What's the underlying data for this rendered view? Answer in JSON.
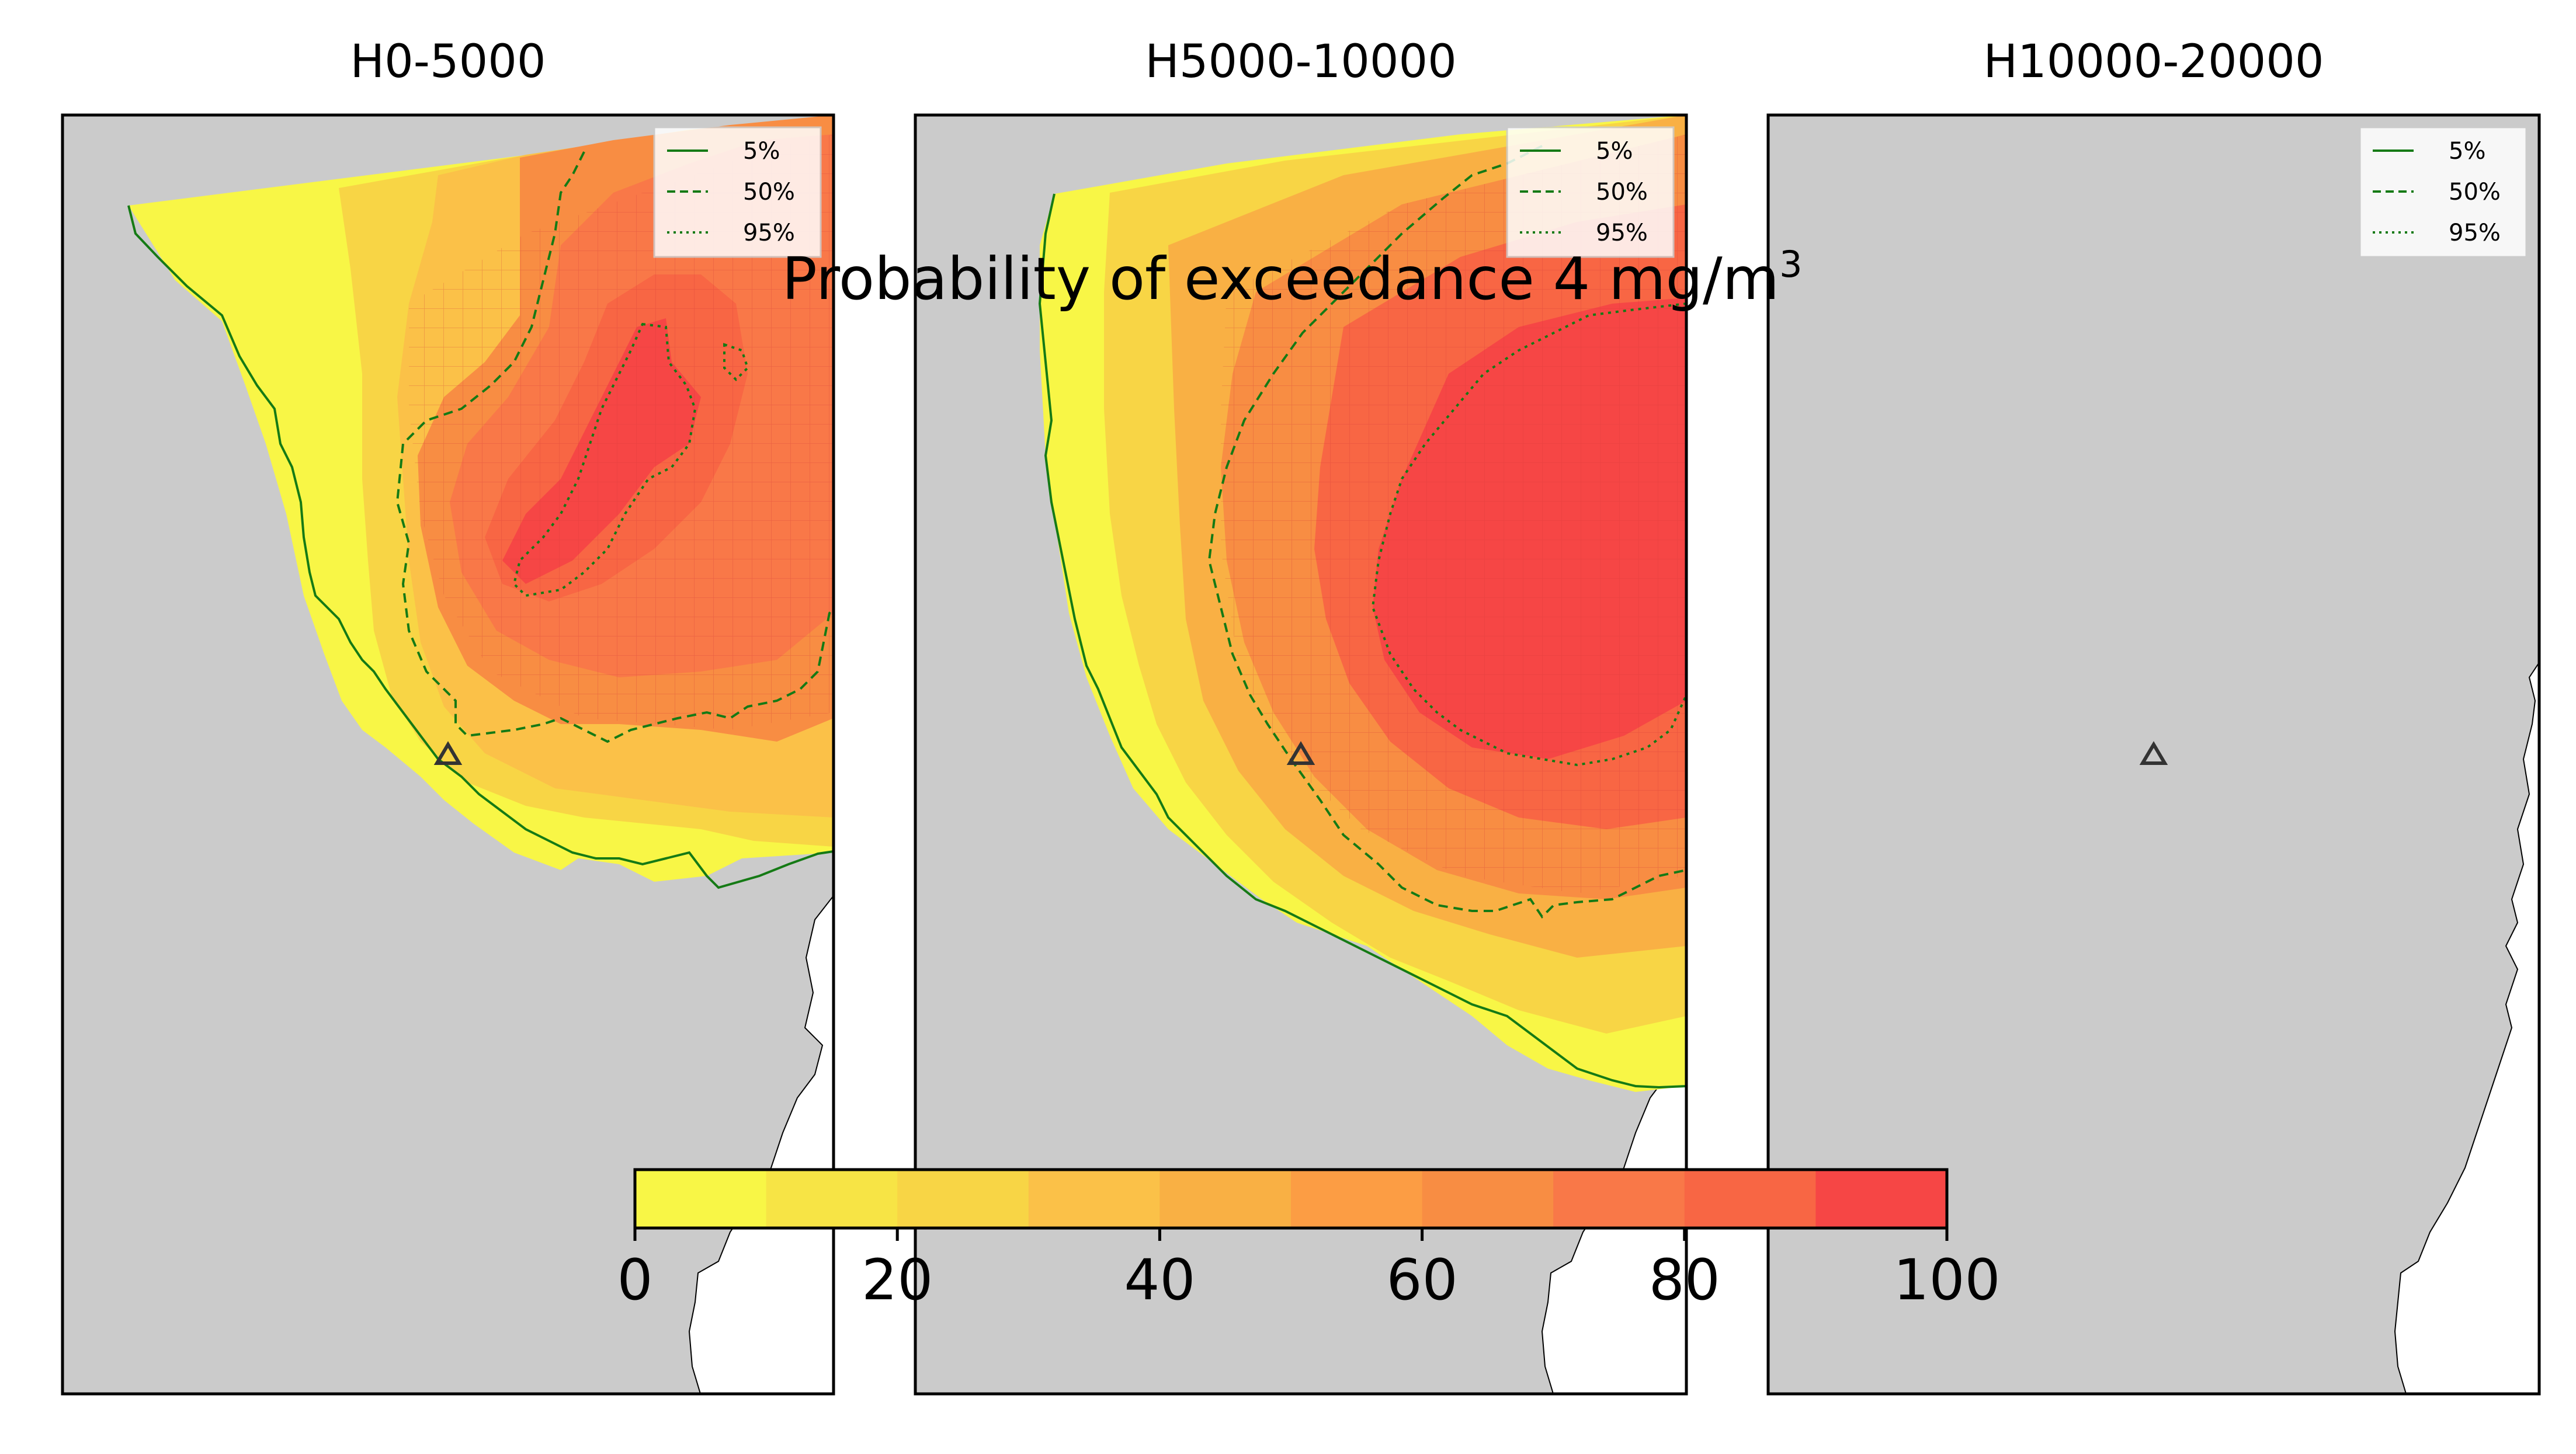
{
  "chart_data": {
    "type": "heatmap",
    "title": "Probability of exceedance 4 mg/m",
    "title_superscript": "3",
    "panels": [
      {
        "title": "H0-5000",
        "legend": [
          {
            "label": "5%",
            "style": "solid"
          },
          {
            "label": "50%",
            "style": "dashed"
          },
          {
            "label": "95%",
            "style": "dotted"
          }
        ],
        "has_data": true
      },
      {
        "title": "H5000-10000",
        "legend": [
          {
            "label": "5%",
            "style": "solid"
          },
          {
            "label": "50%",
            "style": "dashed"
          },
          {
            "label": "95%",
            "style": "dotted"
          }
        ],
        "has_data": true
      },
      {
        "title": "H10000-20000",
        "legend": [
          {
            "label": "5%",
            "style": "solid"
          },
          {
            "label": "50%",
            "style": "dashed"
          },
          {
            "label": "95%",
            "style": "dotted"
          }
        ],
        "has_data": false
      }
    ],
    "colorbar": {
      "bins": [
        0,
        10,
        20,
        30,
        40,
        50,
        60,
        70,
        80,
        90,
        100
      ],
      "colors": [
        "#f8f646",
        "#f7e445",
        "#f8d545",
        "#fbc148",
        "#f9b044",
        "#fc9d44",
        "#f88d43",
        "#f97848",
        "#f86644",
        "#f64645"
      ],
      "ticks": [
        0,
        20,
        40,
        60,
        80,
        100
      ],
      "tick_labels": [
        "0",
        "20",
        "40",
        "60",
        "80",
        "100"
      ]
    },
    "contour_color": "#157a15",
    "land_color": "#cbcbcb",
    "sea_color": "#ffffff",
    "marker": "triangle"
  }
}
